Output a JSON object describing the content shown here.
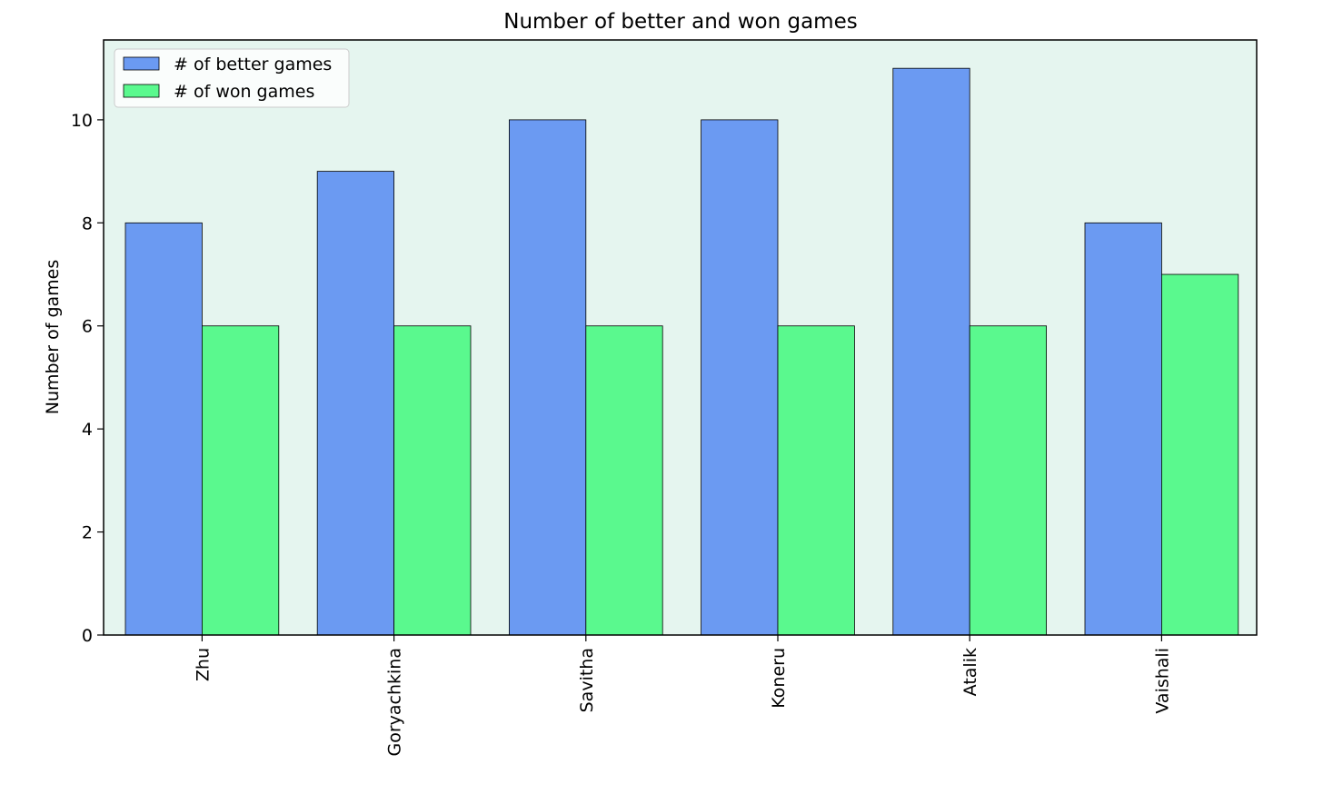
{
  "chart_data": {
    "type": "bar",
    "title": "Number of better and won games",
    "xlabel": "",
    "ylabel": "Number of games",
    "categories": [
      "Zhu",
      "Goryachkina",
      "Savitha",
      "Koneru",
      "Atalik",
      "Vaishali"
    ],
    "series": [
      {
        "name": "# of better games",
        "values": [
          8,
          9,
          10,
          10,
          11,
          8
        ],
        "color": "#6b9af2"
      },
      {
        "name": "# of won games",
        "values": [
          6,
          6,
          6,
          6,
          6,
          7
        ],
        "color": "#5af98e"
      }
    ],
    "yticks": [
      0,
      2,
      4,
      6,
      8,
      10
    ],
    "ylim": [
      0,
      11.55
    ],
    "grid": false,
    "legend_position": "top-left",
    "plot_background": "#e5f5ef",
    "x_tick_rotation": "vertical"
  }
}
